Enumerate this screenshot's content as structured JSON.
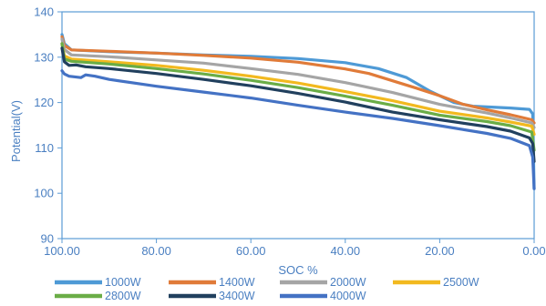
{
  "chart_data": {
    "type": "line",
    "title": "",
    "xlabel": "SOC %",
    "ylabel": "Potential(V)",
    "xlim": [
      100,
      0
    ],
    "ylim": [
      90,
      140
    ],
    "x_ticks": [
      "100.00",
      "80.00",
      "60.00",
      "40.00",
      "20.00",
      "0.00"
    ],
    "y_ticks": [
      "90",
      "100",
      "110",
      "120",
      "130",
      "140"
    ],
    "grid": false,
    "legend_position": "bottom",
    "series": [
      {
        "name": "1000W",
        "color": "#4e9ad6",
        "points": [
          [
            100,
            135
          ],
          [
            99.5,
            133
          ],
          [
            98,
            131.6
          ],
          [
            90,
            131.2
          ],
          [
            80,
            130.9
          ],
          [
            70,
            130.5
          ],
          [
            60,
            130.2
          ],
          [
            50,
            129.7
          ],
          [
            40,
            128.8
          ],
          [
            33,
            127.5
          ],
          [
            27,
            125.5
          ],
          [
            22,
            122.5
          ],
          [
            17,
            120
          ],
          [
            13,
            119.2
          ],
          [
            5,
            118.8
          ],
          [
            1,
            118.5
          ],
          [
            0.3,
            117.5
          ],
          [
            0,
            101
          ]
        ]
      },
      {
        "name": "1400W",
        "color": "#e07b39",
        "points": [
          [
            100,
            134.5
          ],
          [
            99.5,
            132.6
          ],
          [
            98,
            131.6
          ],
          [
            90,
            131.3
          ],
          [
            80,
            130.9
          ],
          [
            70,
            130.4
          ],
          [
            60,
            129.8
          ],
          [
            50,
            128.9
          ],
          [
            40,
            127.4
          ],
          [
            35,
            126.4
          ],
          [
            30,
            124.8
          ],
          [
            25,
            123.2
          ],
          [
            20,
            121.5
          ],
          [
            15,
            119.6
          ],
          [
            10,
            118.4
          ],
          [
            5,
            117.3
          ],
          [
            0.5,
            116.2
          ],
          [
            0,
            115.5
          ]
        ]
      },
      {
        "name": "2000W",
        "color": "#a5a5a5",
        "points": [
          [
            100,
            134
          ],
          [
            99.5,
            131.7
          ],
          [
            98,
            130.5
          ],
          [
            90,
            130.1
          ],
          [
            80,
            129.4
          ],
          [
            70,
            128.7
          ],
          [
            60,
            127.5
          ],
          [
            50,
            126.2
          ],
          [
            40,
            124.4
          ],
          [
            30,
            122.2
          ],
          [
            20,
            119.6
          ],
          [
            10,
            117.7
          ],
          [
            5,
            116.6
          ],
          [
            0.5,
            115.5
          ],
          [
            0,
            114.5
          ]
        ]
      },
      {
        "name": "2500W",
        "color": "#f2b91f",
        "points": [
          [
            100,
            133
          ],
          [
            99.5,
            130.3
          ],
          [
            98,
            129.6
          ],
          [
            90,
            129
          ],
          [
            80,
            128.2
          ],
          [
            70,
            127.1
          ],
          [
            60,
            125.8
          ],
          [
            50,
            124.3
          ],
          [
            40,
            122.4
          ],
          [
            30,
            120.4
          ],
          [
            20,
            118.1
          ],
          [
            10,
            116.6
          ],
          [
            5,
            115.7
          ],
          [
            0.5,
            114.8
          ],
          [
            0,
            113
          ]
        ]
      },
      {
        "name": "2800W",
        "color": "#6aad46",
        "points": [
          [
            100,
            133
          ],
          [
            99.5,
            129.6
          ],
          [
            98,
            129.1
          ],
          [
            90,
            128.5
          ],
          [
            80,
            127.5
          ],
          [
            70,
            126.3
          ],
          [
            60,
            124.9
          ],
          [
            50,
            123.3
          ],
          [
            40,
            121.4
          ],
          [
            30,
            119.4
          ],
          [
            20,
            117.2
          ],
          [
            10,
            115.8
          ],
          [
            5,
            114.9
          ],
          [
            0.5,
            113.5
          ],
          [
            0,
            109.5
          ]
        ]
      },
      {
        "name": "3400W",
        "color": "#21405e",
        "points": [
          [
            100,
            132
          ],
          [
            99.5,
            129
          ],
          [
            98.5,
            128.2
          ],
          [
            97,
            128.3
          ],
          [
            95,
            127.9
          ],
          [
            90,
            127.5
          ],
          [
            80,
            126.4
          ],
          [
            70,
            125.1
          ],
          [
            60,
            123.7
          ],
          [
            50,
            122
          ],
          [
            40,
            120.1
          ],
          [
            30,
            117.9
          ],
          [
            20,
            116.2
          ],
          [
            10,
            114.7
          ],
          [
            5,
            113.7
          ],
          [
            1,
            112.2
          ],
          [
            0.3,
            111
          ],
          [
            0,
            107
          ]
        ]
      },
      {
        "name": "4000W",
        "color": "#4472c4",
        "points": [
          [
            100,
            127
          ],
          [
            99.5,
            126.3
          ],
          [
            98.5,
            125.8
          ],
          [
            96,
            125.5
          ],
          [
            95,
            126.1
          ],
          [
            93,
            125.8
          ],
          [
            90,
            125.1
          ],
          [
            80,
            123.6
          ],
          [
            70,
            122.3
          ],
          [
            60,
            121
          ],
          [
            50,
            119.4
          ],
          [
            40,
            117.9
          ],
          [
            30,
            116.5
          ],
          [
            20,
            114.9
          ],
          [
            10,
            113.2
          ],
          [
            5,
            112.1
          ],
          [
            1,
            110.5
          ],
          [
            0.3,
            108
          ],
          [
            0,
            101
          ]
        ]
      }
    ]
  }
}
